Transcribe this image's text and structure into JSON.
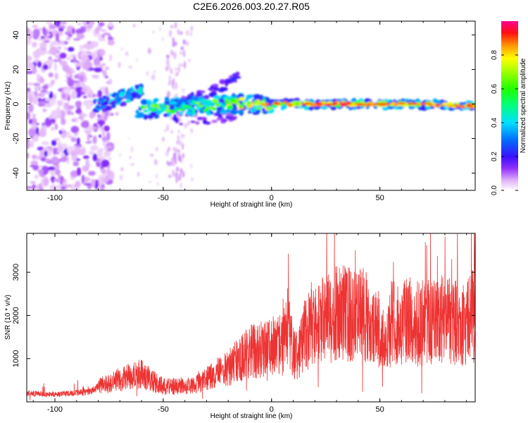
{
  "title": "C2E6.2026.003.20.27.R05",
  "chart_data": [
    {
      "type": "heatmap",
      "name": "spectrogram",
      "xlabel": "Height of straight line (km)",
      "ylabel": "Frequency (Hz)",
      "xlim": [
        -113,
        94
      ],
      "ylim": [
        -50,
        48
      ],
      "xticks": [
        -100,
        -50,
        0,
        50
      ],
      "yticks": [
        -40,
        -20,
        0,
        20,
        40
      ],
      "xtick_labels": [
        "-100",
        "-50",
        "0",
        "50"
      ],
      "ytick_labels": [
        "-40",
        "-20",
        "0",
        "20",
        "40"
      ],
      "colorbar": {
        "label": "Normalized spectral amplitude",
        "range": [
          0,
          1
        ],
        "ticks": [
          0.0,
          0.2,
          0.4,
          0.6,
          0.8
        ],
        "tick_labels": [
          "0.0",
          "0.2",
          "0.4",
          "0.6",
          "0.8"
        ]
      },
      "features": [
        {
          "name": "diffuse noise region",
          "x_range": [
            -113,
            -80
          ],
          "y_range": [
            -50,
            48
          ],
          "amplitude": 0.15
        },
        {
          "name": "rising branch",
          "x": [
            -82,
            -70,
            -60
          ],
          "y": [
            -2,
            3,
            8
          ],
          "amplitude": 0.35
        },
        {
          "name": "upper streak",
          "x": [
            -45,
            -30,
            -15
          ],
          "y": [
            -1,
            6,
            15
          ],
          "amplitude": 0.2
        },
        {
          "name": "main ridge",
          "x": [
            -60,
            -20,
            0,
            30,
            60,
            92
          ],
          "y": [
            -3,
            0,
            0,
            0,
            0,
            -1
          ],
          "amplitude": 0.95
        }
      ]
    },
    {
      "type": "line",
      "name": "snr",
      "xlabel": "Height of straight line (km)",
      "ylabel": "SNR (10 * v/v)",
      "xlim": [
        -113,
        94
      ],
      "ylim": [
        0,
        3900
      ],
      "xticks": [
        -100,
        -50,
        0,
        50
      ],
      "yticks": [
        1000,
        2000,
        3000
      ],
      "xtick_labels": [
        "-100",
        "-50",
        "0",
        "50"
      ],
      "ytick_labels": [
        "1000",
        "2000",
        "3000"
      ],
      "series": [
        {
          "name": "SNR",
          "color": "#ee3333",
          "x": [
            -113,
            -100,
            -85,
            -78,
            -70,
            -60,
            -55,
            -50,
            -40,
            -35,
            -30,
            -20,
            -10,
            -5,
            0,
            5,
            8,
            10,
            12,
            15,
            20,
            25,
            28,
            32,
            38,
            42,
            45,
            50,
            53,
            55,
            58,
            62,
            68,
            72,
            80,
            85,
            90,
            92,
            94
          ],
          "values": [
            200,
            170,
            230,
            380,
            520,
            650,
            480,
            360,
            350,
            390,
            520,
            800,
            1150,
            1200,
            1300,
            1350,
            1600,
            1200,
            1050,
            1500,
            1800,
            1900,
            2000,
            2050,
            2050,
            2000,
            1900,
            1700,
            1200,
            1800,
            1850,
            1900,
            1800,
            1850,
            1900,
            1850,
            1800,
            2000,
            2200
          ]
        }
      ]
    }
  ],
  "colors": {
    "snr_line": "#ee3333",
    "colormap": [
      "#f0d0f0",
      "#c080ff",
      "#7a1fff",
      "#2020ff",
      "#00b0ff",
      "#00ffcc",
      "#00ff00",
      "#ffff00",
      "#ff8800",
      "#ff0000",
      "#ff0080"
    ]
  }
}
